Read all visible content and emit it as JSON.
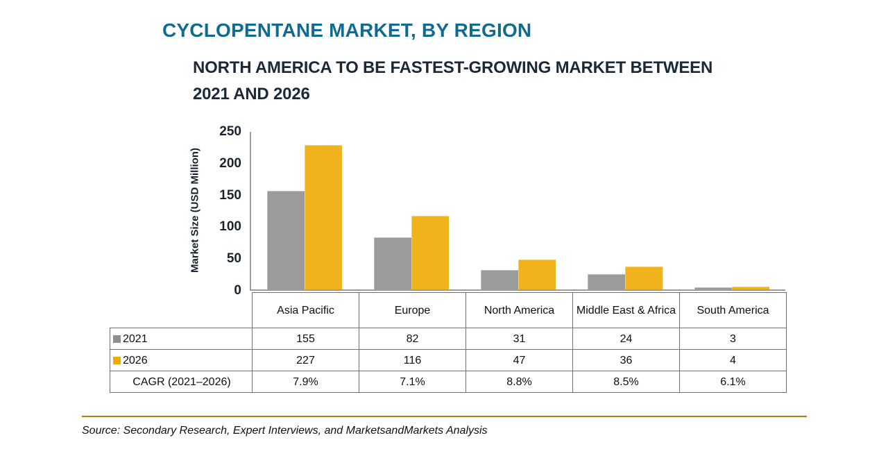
{
  "header": {
    "title": "CYCLOPENTANE MARKET, BY REGION"
  },
  "chart_data": {
    "type": "bar",
    "title": "CYCLOPENTANE MARKET, BY REGION",
    "subtitle_lines": [
      "NORTH AMERICA TO BE FASTEST-GROWING MARKET BETWEEN",
      "2021 AND 2026"
    ],
    "categories": [
      "Asia Pacific",
      "Europe",
      "North America",
      "Middle East & Africa",
      "South America"
    ],
    "series": [
      {
        "name": "2021",
        "color": "#9B9B99",
        "swatch_color": "#8F8F8F",
        "values": [
          155,
          82,
          31,
          24,
          3
        ]
      },
      {
        "name": "2026",
        "color": "#F0B31E",
        "swatch_color": "#EDAD00",
        "values": [
          227,
          116,
          47,
          36,
          4
        ]
      }
    ],
    "cagr_row": {
      "label": "CAGR (2021–2026)",
      "values": [
        "7.9%",
        "7.1%",
        "8.8%",
        "8.5%",
        "6.1%"
      ]
    },
    "xlabel": "",
    "ylabel": "Market Size (USD Million)",
    "ylim": [
      0,
      250
    ],
    "yticks": [
      0,
      50,
      100,
      150,
      200,
      250
    ],
    "grid": false,
    "legend_position": "table-left"
  },
  "footer": {
    "source": "Source: Secondary Research, Expert Interviews, and MarketsandMarkets Analysis"
  },
  "colors": {
    "title_teal": "#116A90",
    "subtitle_navy": "#1B2836",
    "axis_gray": "#9C9C9C",
    "table_border_gray": "#6F6F6F",
    "source_line_gold": "#A87F0B"
  }
}
